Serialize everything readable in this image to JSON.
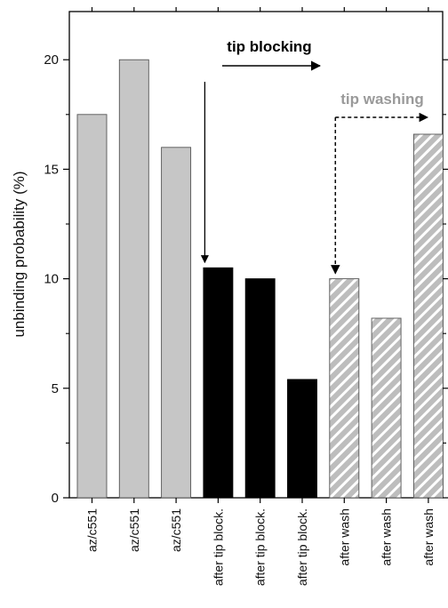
{
  "chart_data": {
    "type": "bar",
    "categories": [
      "az/c551",
      "az/c551",
      "az/c551",
      "after tip block.",
      "after tip block.",
      "after tip block.",
      "after wash",
      "after wash",
      "after wash"
    ],
    "values": [
      17.5,
      20.0,
      16.0,
      10.5,
      10.0,
      5.4,
      10.0,
      8.2,
      16.6
    ],
    "bar_styles": [
      "gray",
      "gray",
      "gray",
      "black",
      "black",
      "black",
      "hatched",
      "hatched",
      "hatched"
    ],
    "colors": {
      "gray": "#c6c6c6",
      "black": "#000000",
      "hatch_bg": "#bdbdbd",
      "hatch_line": "#ffffff",
      "gray_annotation": "#9a9a9a"
    },
    "ylabel": "unbinding probability (%)",
    "xlabel": "",
    "ylim": [
      0,
      22.2
    ],
    "yticks": [
      "0",
      "5",
      "10",
      "15",
      "20"
    ],
    "ytick_values": [
      0,
      5,
      10,
      15,
      20
    ],
    "grid": false,
    "annotations": [
      {
        "text": "tip blocking",
        "style": "solid",
        "from_bar": 3,
        "to_bar": 5,
        "color": "#000000"
      },
      {
        "text": "tip washing",
        "style": "dashed",
        "from_bar": 6,
        "to_bar": 8,
        "color": "#9a9a9a"
      }
    ]
  }
}
